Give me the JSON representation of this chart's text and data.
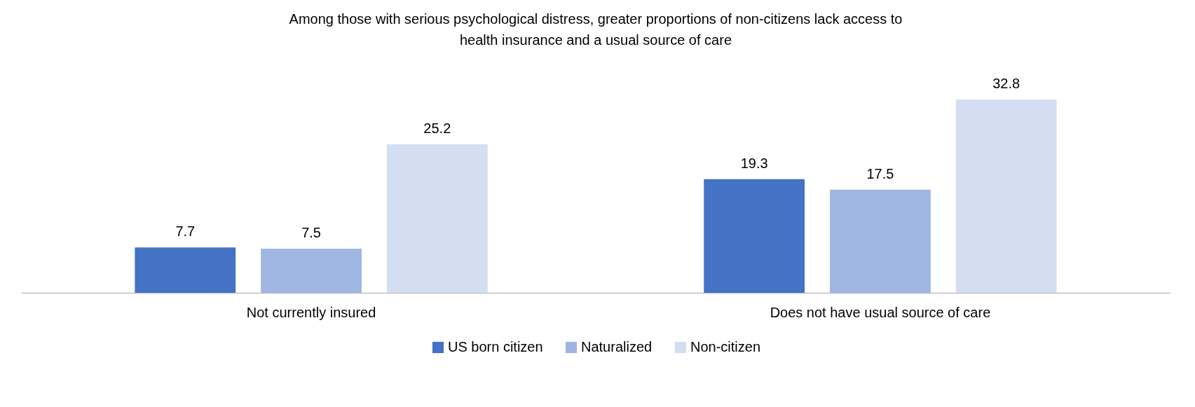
{
  "chart_data": {
    "type": "bar",
    "title": "Among those with serious psychological distress, greater proportions of non-citizens lack access to health insurance and a usual source of care",
    "categories": [
      "Not currently insured",
      "Does not have usual source of care"
    ],
    "series": [
      {
        "name": "US born citizen",
        "color": "#4472c4",
        "values": [
          7.7,
          19.3
        ]
      },
      {
        "name": "Naturalized",
        "color": "#9fb6e2",
        "values": [
          7.5,
          17.5
        ]
      },
      {
        "name": "Non-citizen",
        "color": "#d3def3",
        "values": [
          25.2,
          32.8
        ]
      }
    ],
    "data_labels": true,
    "legend": "bottom",
    "grid": false
  }
}
